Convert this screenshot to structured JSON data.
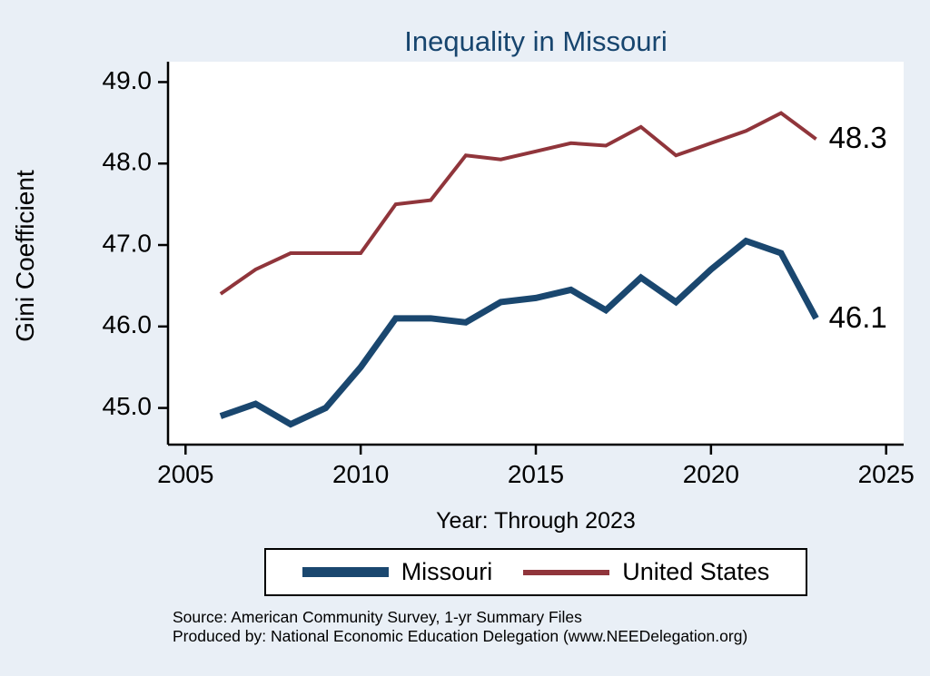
{
  "title": "Inequality in Missouri",
  "axes": {
    "y_label": "Gini Coefficient",
    "x_label": "Year: Through 2023"
  },
  "chart_data": {
    "type": "line",
    "title": "Inequality in Missouri",
    "xlabel": "Year: Through 2023",
    "ylabel": "Gini Coefficient",
    "x": [
      2006,
      2007,
      2008,
      2009,
      2010,
      2011,
      2012,
      2013,
      2014,
      2015,
      2016,
      2017,
      2018,
      2019,
      2020,
      2021,
      2022,
      2023
    ],
    "series": [
      {
        "name": "Missouri",
        "color": "#1a476f",
        "line_width": 7,
        "values": [
          44.9,
          45.05,
          44.8,
          45.0,
          45.5,
          46.1,
          46.1,
          46.05,
          46.3,
          46.35,
          46.45,
          46.2,
          46.6,
          46.3,
          46.7,
          47.05,
          46.9,
          46.1
        ],
        "end_label": "46.1"
      },
      {
        "name": "United States",
        "color": "#90353b",
        "line_width": 4,
        "values": [
          46.4,
          46.7,
          46.9,
          46.9,
          46.9,
          47.5,
          47.55,
          48.1,
          48.05,
          48.15,
          48.25,
          48.22,
          48.45,
          48.1,
          48.25,
          48.4,
          48.62,
          48.3
        ],
        "end_label": "48.3"
      }
    ],
    "xlim": [
      2004.5,
      2025.5
    ],
    "ylim": [
      44.55,
      49.25
    ],
    "x_ticks": [
      2005,
      2010,
      2015,
      2020,
      2025
    ],
    "y_ticks": [
      45.0,
      46.0,
      47.0,
      48.0,
      49.0
    ],
    "y_tick_labels": [
      "45.0",
      "46.0",
      "47.0",
      "48.0",
      "49.0"
    ],
    "x_tick_labels": [
      "2005",
      "2010",
      "2015",
      "2020",
      "2025"
    ],
    "grid": false,
    "legend_position": "bottom"
  },
  "footer": {
    "source_line1": "Source: American Community Survey, 1-yr Summary Files",
    "source_line2": "Produced by: National Economic Education Delegation (www.NEEDelegation.org)"
  },
  "colors": {
    "background": "#e9eff6",
    "plot_background": "#ffffff",
    "axis": "#000000",
    "title": "#17456e",
    "text": "#000000"
  }
}
